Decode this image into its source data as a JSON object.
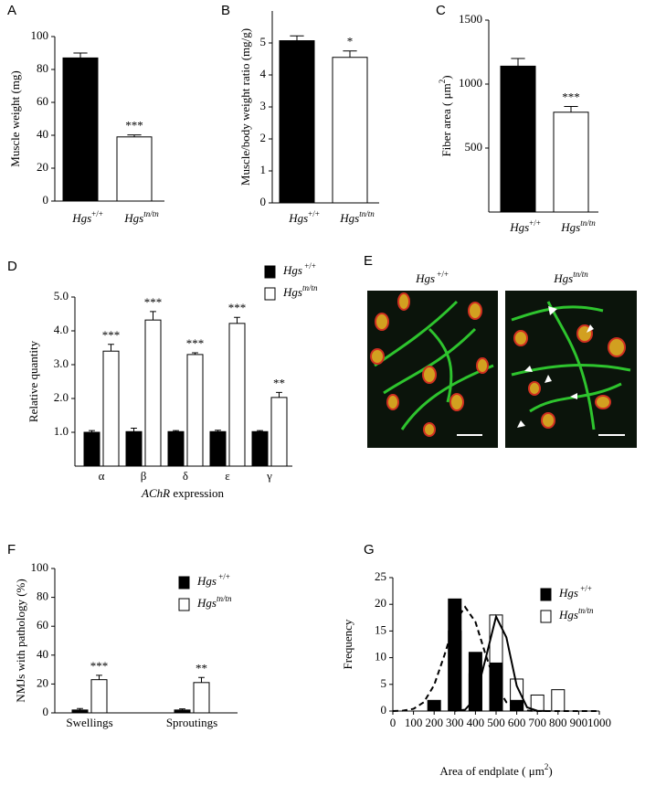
{
  "chart_data": [
    {
      "type": "bar",
      "panel": "A",
      "ylabel": "Muscle weight (mg)",
      "categories": [
        [
          {
            "text": "Hgs",
            "italic": true
          },
          {
            "text": "+/+",
            "sup": true
          }
        ],
        [
          {
            "text": "Hgs",
            "italic": true
          },
          {
            "text": "tn/tn",
            "sup": true,
            "italic": true
          }
        ]
      ],
      "values": [
        87,
        39
      ],
      "errors": [
        3,
        1.2
      ],
      "significance": [
        null,
        "***"
      ],
      "colors": [
        "#000000",
        "#ffffff"
      ],
      "ylim": [
        0,
        100
      ],
      "yticks": [
        0,
        20,
        40,
        60,
        80,
        100
      ]
    },
    {
      "type": "bar",
      "panel": "B",
      "ylabel": "Muscle/body weight ratio (mg/g)",
      "categories": [
        [
          {
            "text": "Hgs",
            "italic": true
          },
          {
            "text": "+/+",
            "sup": true
          }
        ],
        [
          {
            "text": "Hgs",
            "italic": true
          },
          {
            "text": "tn/tn",
            "sup": true,
            "italic": true
          }
        ]
      ],
      "values": [
        5.07,
        4.55
      ],
      "errors": [
        0.15,
        0.2
      ],
      "significance": [
        null,
        "*"
      ],
      "colors": [
        "#000000",
        "#ffffff"
      ],
      "ylim": [
        0,
        6
      ],
      "yticks": [
        0,
        1,
        2,
        3,
        4,
        5
      ]
    },
    {
      "type": "bar",
      "panel": "C",
      "ylabel": [
        {
          "text": "Fiber area ( μm"
        },
        {
          "text": "2",
          "sup": true
        },
        {
          "text": ")"
        }
      ],
      "categories": [
        [
          {
            "text": "Hgs",
            "italic": true
          },
          {
            "text": "+/+",
            "sup": true
          }
        ],
        [
          {
            "text": "Hgs",
            "italic": true
          },
          {
            "text": "tn/tn",
            "sup": true,
            "italic": true
          }
        ]
      ],
      "values": [
        1140,
        780
      ],
      "errors": [
        60,
        45
      ],
      "significance": [
        null,
        "***"
      ],
      "colors": [
        "#000000",
        "#ffffff"
      ],
      "ylim": [
        0,
        1500
      ],
      "yticks": [
        500,
        1000,
        1500
      ]
    },
    {
      "type": "bar",
      "panel": "D",
      "ylabel": "Relative quantity",
      "xlabel": [
        {
          "text": "AChR",
          "italic": true
        },
        {
          "text": " expression"
        }
      ],
      "categories": [
        "α",
        "β",
        "δ",
        "ε",
        "γ"
      ],
      "series": [
        {
          "name": [
            {
              "text": "Hgs",
              "italic": true
            },
            {
              "text": " +/+",
              "sup": true
            }
          ],
          "color": "#000000",
          "values": [
            1.0,
            1.02,
            1.02,
            1.02,
            1.02
          ],
          "errors": [
            0.05,
            0.1,
            0.03,
            0.04,
            0.03
          ]
        },
        {
          "name": [
            {
              "text": "Hgs",
              "italic": true
            },
            {
              "text": "tn/tn",
              "sup": true,
              "italic": true
            }
          ],
          "color": "#ffffff",
          "values": [
            3.4,
            4.32,
            3.3,
            4.22,
            2.03
          ],
          "errors": [
            0.2,
            0.25,
            0.05,
            0.18,
            0.15
          ],
          "significance": [
            "***",
            "***",
            "***",
            "***",
            "**"
          ]
        }
      ],
      "ylim": [
        0,
        5
      ],
      "yticks": [
        {
          "value": 1,
          "label": "1.0"
        },
        {
          "value": 2,
          "label": "2.0"
        },
        {
          "value": 3,
          "label": "3.0"
        },
        {
          "value": 4,
          "label": "4.0"
        },
        {
          "value": 5,
          "label": "5.0"
        }
      ]
    },
    {
      "type": "bar",
      "panel": "F",
      "ylabel": "NMJs with pathology (%)",
      "categories": [
        "Swellings",
        "Sproutings"
      ],
      "series": [
        {
          "name": [
            {
              "text": "Hgs",
              "italic": true
            },
            {
              "text": " +/+",
              "sup": true
            }
          ],
          "color": "#000000",
          "values": [
            2,
            2
          ],
          "errors": [
            1,
            0.8
          ]
        },
        {
          "name": [
            {
              "text": "Hgs",
              "italic": true
            },
            {
              "text": "tn/tn",
              "sup": true,
              "italic": true
            }
          ],
          "color": "#ffffff",
          "values": [
            23,
            21
          ],
          "errors": [
            3,
            3.5
          ],
          "significance": [
            "***",
            "**"
          ]
        }
      ],
      "ylim": [
        0,
        100
      ],
      "yticks": [
        0,
        20,
        40,
        60,
        80,
        100
      ]
    },
    {
      "type": "bar",
      "panel": "G",
      "ylabel": "Frequency",
      "xlabel": [
        {
          "text": "Area of endplate ( μm"
        },
        {
          "text": "2",
          "sup": true
        },
        {
          "text": ")"
        }
      ],
      "series": [
        {
          "name": [
            {
              "text": "Hgs",
              "italic": true
            },
            {
              "text": " +/+",
              "sup": true
            }
          ],
          "color": "#000000",
          "x": [
            200,
            300,
            400,
            500,
            600
          ],
          "values": [
            2,
            21,
            11,
            9,
            2
          ]
        },
        {
          "name": [
            {
              "text": "Hgs",
              "italic": true
            },
            {
              "text": "tn/tn",
              "sup": true,
              "italic": true
            }
          ],
          "color": "#ffffff",
          "x": [
            300,
            400,
            500,
            600,
            700,
            800
          ],
          "values": [
            15,
            7,
            18,
            6,
            3,
            4
          ]
        }
      ],
      "fits": [
        {
          "style": "dashed",
          "x": [
            0,
            50,
            100,
            150,
            200,
            250,
            300,
            350,
            400,
            450,
            500,
            550,
            600,
            650,
            700,
            750,
            800,
            850,
            900,
            950,
            1000
          ],
          "values": [
            0.01,
            0.08,
            0.41,
            1.65,
            4.86,
            10.5,
            16.7,
            19.5,
            16.7,
            10.5,
            4.86,
            1.65,
            0.41,
            0.08,
            0.01,
            0,
            0,
            0,
            0,
            0,
            0
          ]
        },
        {
          "style": "solid",
          "x": [
            0,
            50,
            100,
            150,
            200,
            250,
            300,
            350,
            400,
            450,
            500,
            550,
            600,
            650,
            700,
            750,
            800,
            850,
            900,
            950,
            1000
          ],
          "values": [
            null,
            null,
            null,
            null,
            null,
            null,
            0.01,
            0.26,
            2.44,
            9.93,
            17.7,
            13.8,
            4.72,
            0.7,
            0.05,
            0,
            null,
            null,
            null,
            null,
            null
          ]
        }
      ],
      "xlim": [
        0,
        1000
      ],
      "xticks": [
        0,
        100,
        200,
        300,
        400,
        500,
        600,
        700,
        800,
        900,
        1000
      ],
      "ylim": [
        0,
        25
      ],
      "yticks": [
        0,
        5,
        10,
        15,
        20,
        25
      ]
    }
  ],
  "image_panel": {
    "panel": "E",
    "labels": [
      [
        {
          "text": "Hgs",
          "italic": true
        },
        {
          "text": " +/+",
          "sup": true
        }
      ],
      [
        {
          "text": "Hgs",
          "italic": true
        },
        {
          "text": "tn/tn",
          "sup": true,
          "italic": true
        }
      ]
    ]
  }
}
